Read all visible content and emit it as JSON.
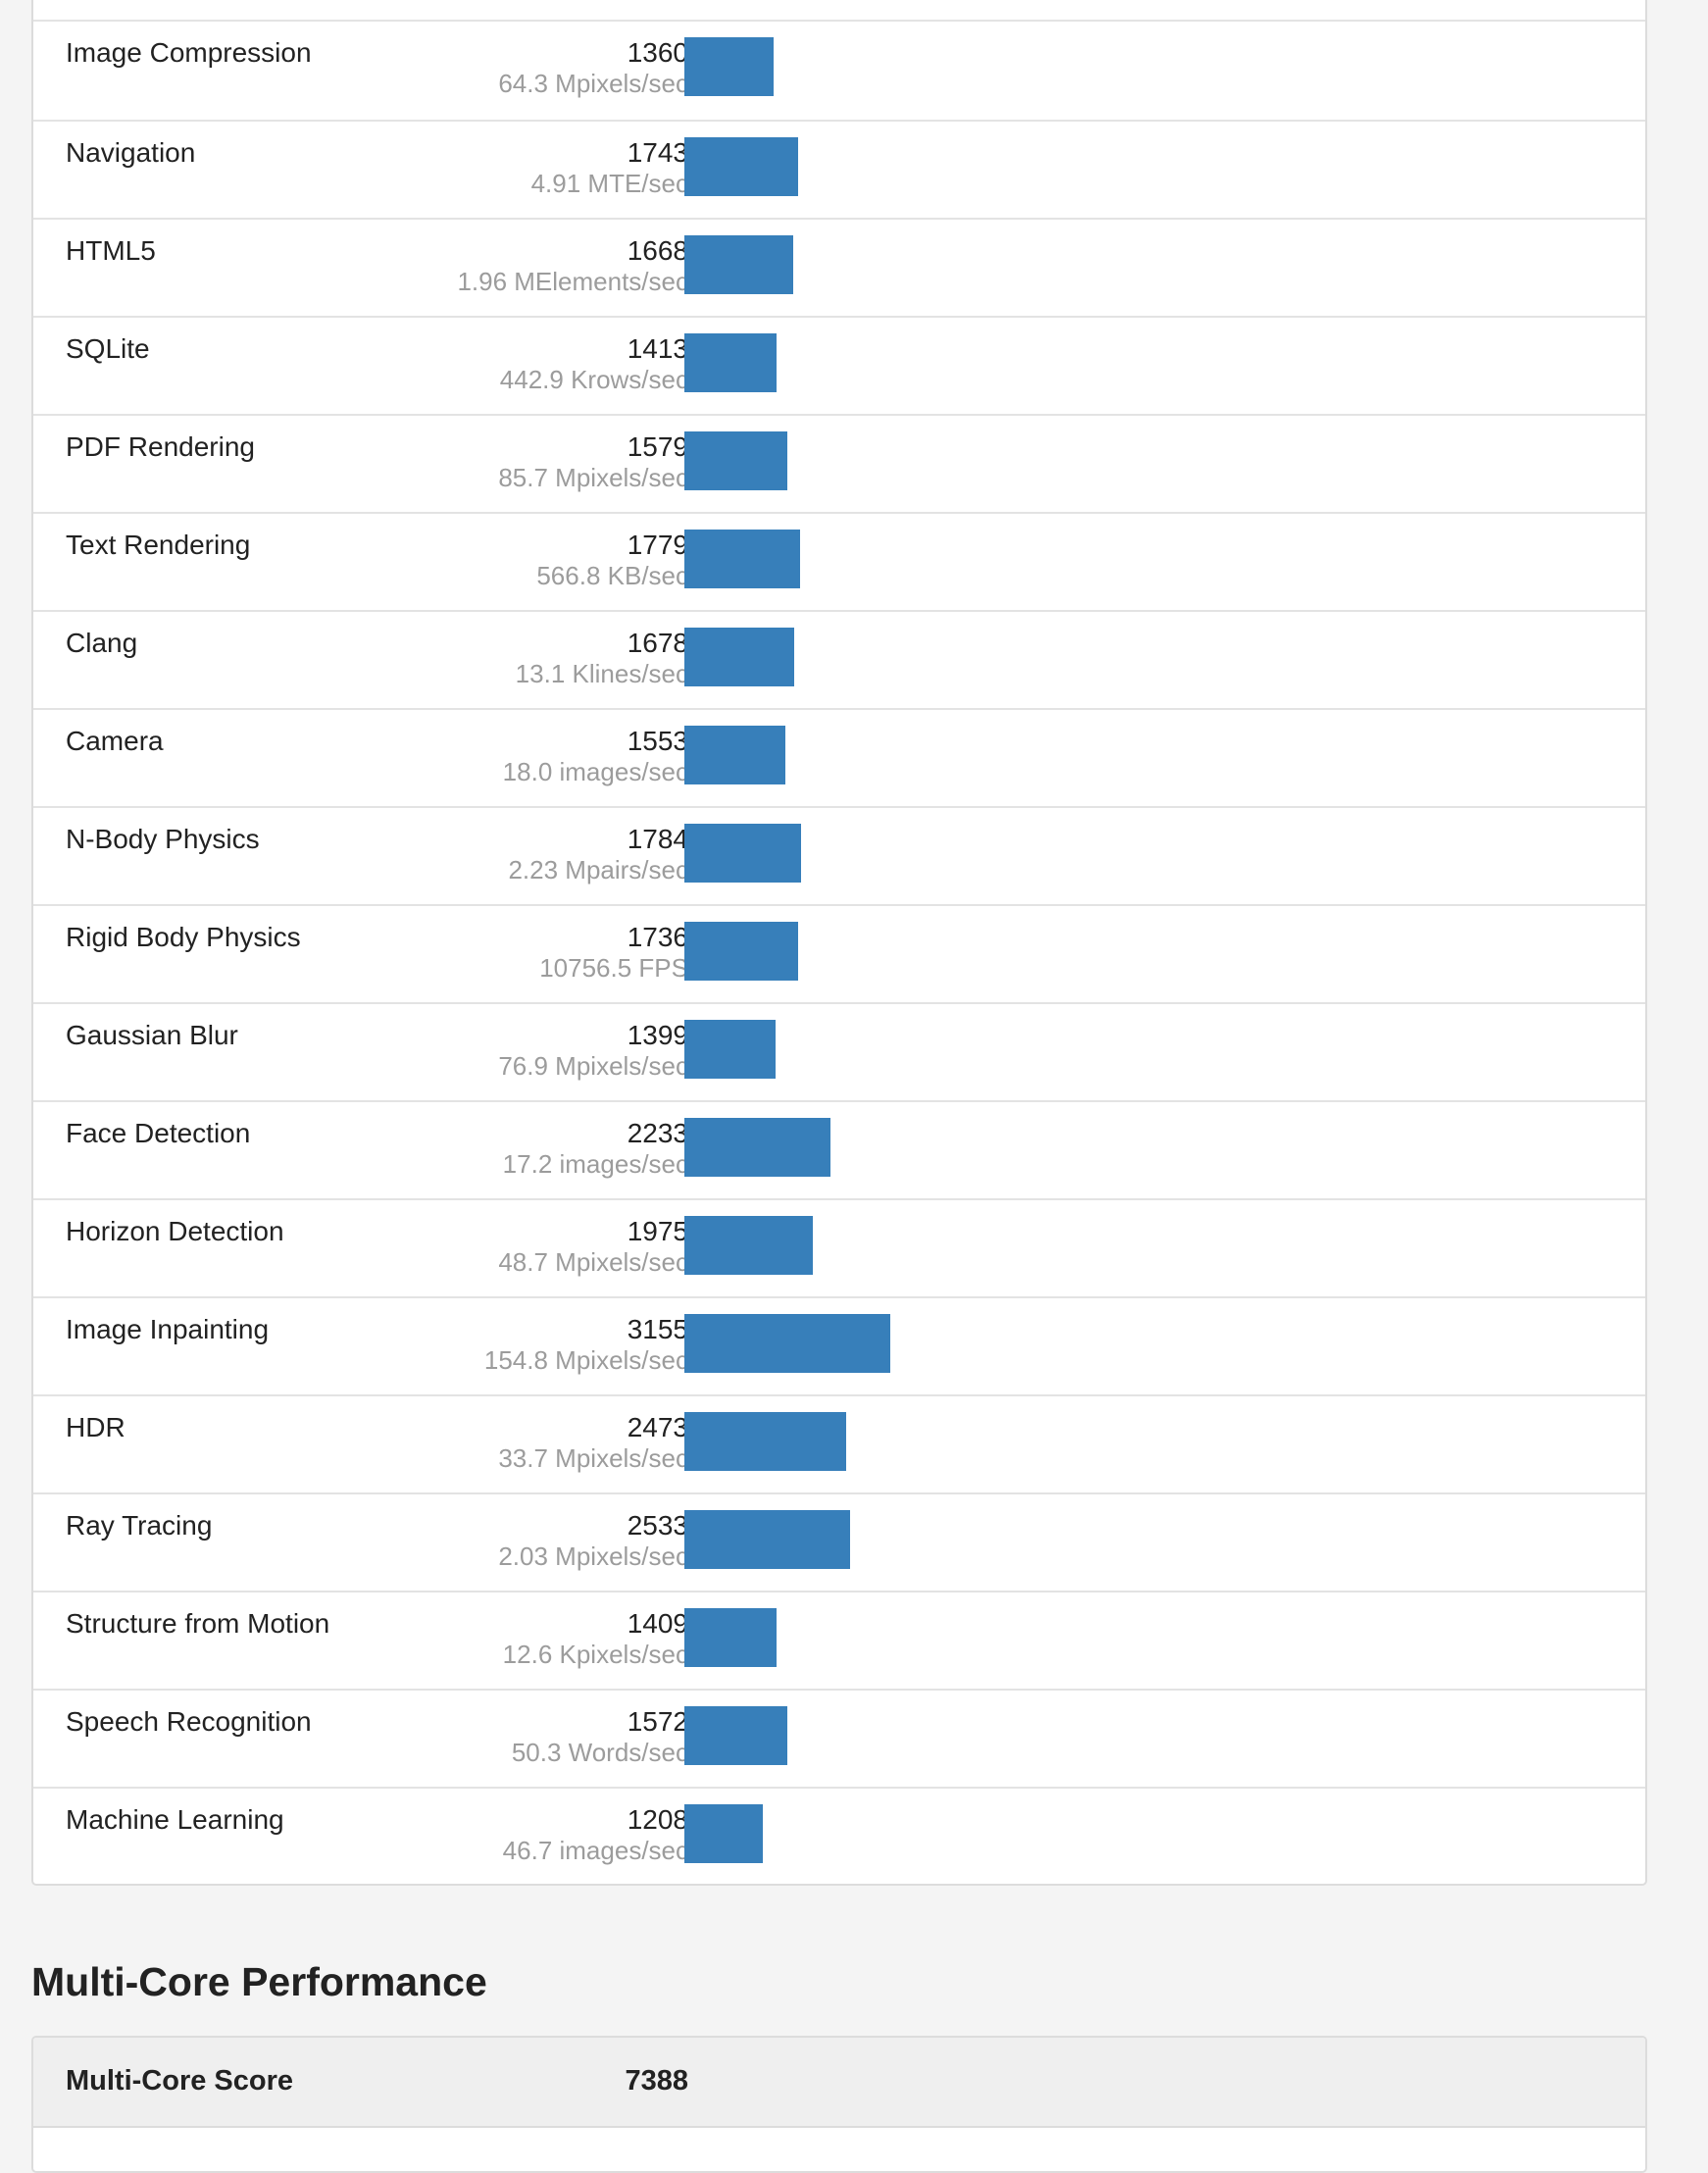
{
  "colors": {
    "bar": "#377fba",
    "unit_text": "#9c9c9c"
  },
  "chart_data": {
    "type": "bar",
    "categories": [
      "Image Compression",
      "Navigation",
      "HTML5",
      "SQLite",
      "PDF Rendering",
      "Text Rendering",
      "Clang",
      "Camera",
      "N-Body Physics",
      "Rigid Body Physics",
      "Gaussian Blur",
      "Face Detection",
      "Horizon Detection",
      "Image Inpainting",
      "HDR",
      "Ray Tracing",
      "Structure from Motion",
      "Speech Recognition",
      "Machine Learning"
    ],
    "values": [
      1360,
      1743,
      1668,
      1413,
      1579,
      1779,
      1678,
      1553,
      1784,
      1736,
      1399,
      2233,
      1975,
      3155,
      2473,
      2533,
      1409,
      1572,
      1208
    ]
  },
  "rows": [
    {
      "name": "Image Compression",
      "score": "1360",
      "unit": "64.3 Mpixels/sec"
    },
    {
      "name": "Navigation",
      "score": "1743",
      "unit": "4.91 MTE/sec"
    },
    {
      "name": "HTML5",
      "score": "1668",
      "unit": "1.96 MElements/sec"
    },
    {
      "name": "SQLite",
      "score": "1413",
      "unit": "442.9 Krows/sec"
    },
    {
      "name": "PDF Rendering",
      "score": "1579",
      "unit": "85.7 Mpixels/sec"
    },
    {
      "name": "Text Rendering",
      "score": "1779",
      "unit": "566.8 KB/sec"
    },
    {
      "name": "Clang",
      "score": "1678",
      "unit": "13.1 Klines/sec"
    },
    {
      "name": "Camera",
      "score": "1553",
      "unit": "18.0 images/sec"
    },
    {
      "name": "N-Body Physics",
      "score": "1784",
      "unit": "2.23 Mpairs/sec"
    },
    {
      "name": "Rigid Body Physics",
      "score": "1736",
      "unit": "10756.5 FPS"
    },
    {
      "name": "Gaussian Blur",
      "score": "1399",
      "unit": "76.9 Mpixels/sec"
    },
    {
      "name": "Face Detection",
      "score": "2233",
      "unit": "17.2 images/sec"
    },
    {
      "name": "Horizon Detection",
      "score": "1975",
      "unit": "48.7 Mpixels/sec"
    },
    {
      "name": "Image Inpainting",
      "score": "3155",
      "unit": "154.8 Mpixels/sec"
    },
    {
      "name": "HDR",
      "score": "2473",
      "unit": "33.7 Mpixels/sec"
    },
    {
      "name": "Ray Tracing",
      "score": "2533",
      "unit": "2.03 Mpixels/sec"
    },
    {
      "name": "Structure from Motion",
      "score": "1409",
      "unit": "12.6 Kpixels/sec"
    },
    {
      "name": "Speech Recognition",
      "score": "1572",
      "unit": "50.3 Words/sec"
    },
    {
      "name": "Machine Learning",
      "score": "1208",
      "unit": "46.7 images/sec"
    }
  ],
  "multi_core": {
    "section_title": "Multi-Core Performance",
    "score_label": "Multi-Core Score",
    "score_value": "7388"
  }
}
